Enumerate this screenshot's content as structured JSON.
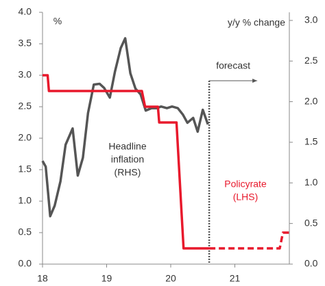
{
  "chart_data": {
    "type": "line",
    "ylabel": "%",
    "y2label": "y/y % change",
    "xlim": [
      18,
      21.85
    ],
    "xticks": [
      18,
      19,
      20,
      21
    ],
    "ylim": [
      0,
      4
    ],
    "yticks": [
      {
        "value": 0,
        "label": "0.0"
      },
      {
        "value": 0.5,
        "label": "0.5"
      },
      {
        "value": 1,
        "label": "1.0"
      },
      {
        "value": 1.5,
        "label": "1.5"
      },
      {
        "value": 2,
        "label": "2.0"
      },
      {
        "value": 2.5,
        "label": "2.5"
      },
      {
        "value": 3,
        "label": "3.0"
      },
      {
        "value": 3.5,
        "label": "3.5"
      },
      {
        "value": 4,
        "label": "4.0"
      }
    ],
    "y2lim": [
      0,
      3.1
    ],
    "y2ticks": [
      {
        "value": 0,
        "label": "0.0"
      },
      {
        "value": 0.5,
        "label": "0.5"
      },
      {
        "value": 1,
        "label": "1.0"
      },
      {
        "value": 1.5,
        "label": "1.5"
      },
      {
        "value": 2,
        "label": "2.0"
      },
      {
        "value": 2.5,
        "label": "2.5"
      },
      {
        "value": 3,
        "label": "3.0"
      }
    ],
    "series": [
      {
        "name": [
          "Headline",
          "inflation",
          "(RHS)"
        ],
        "color": "#555555",
        "axis": "y2",
        "x": [
          18.0,
          18.05,
          18.12,
          18.19,
          18.28,
          18.36,
          18.47,
          18.55,
          18.63,
          18.71,
          18.8,
          18.89,
          18.96,
          19.05,
          19.13,
          19.22,
          19.29,
          19.37,
          19.45,
          19.53,
          19.61,
          19.7,
          19.78,
          19.85,
          19.94,
          20.02,
          20.11,
          20.19,
          20.26,
          20.35,
          20.42,
          20.5,
          20.58
        ],
        "values": [
          1.27,
          1.2,
          0.59,
          0.72,
          1.02,
          1.47,
          1.67,
          1.09,
          1.31,
          1.86,
          2.21,
          2.22,
          2.17,
          2.05,
          2.37,
          2.66,
          2.78,
          2.35,
          2.16,
          2.09,
          1.89,
          1.92,
          1.92,
          1.94,
          1.92,
          1.94,
          1.92,
          1.84,
          1.74,
          1.8,
          1.63,
          1.9,
          1.72
        ]
      },
      {
        "name": [
          "Policyrate",
          "(LHS)"
        ],
        "color": "#e8192c",
        "x": [
          18.0,
          18.08,
          18.1,
          19.55,
          19.6,
          19.8,
          19.82,
          20.09,
          20.2,
          20.6
        ],
        "values": [
          3.0,
          3.0,
          2.75,
          2.75,
          2.5,
          2.5,
          2.25,
          2.25,
          0.25,
          0.25
        ]
      },
      {
        "color": "#e8192c",
        "dashed": true,
        "x": [
          20.6,
          21.7,
          21.75,
          21.85
        ],
        "values": [
          0.25,
          0.25,
          0.5,
          0.5
        ]
      }
    ],
    "forecast": {
      "x": 20.6,
      "label": "forecast"
    }
  }
}
